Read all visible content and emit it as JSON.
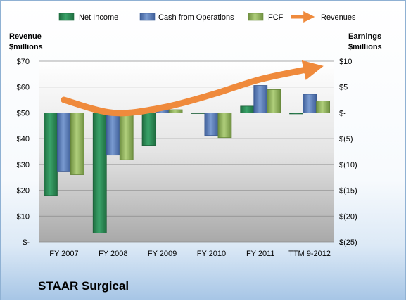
{
  "company": "STAAR Surgical",
  "chart_data": {
    "type": "bar",
    "categories": [
      "FY 2007",
      "FY 2008",
      "FY 2009",
      "FY 2010",
      "FY 2011",
      "TTM 9-2012"
    ],
    "left_axis": {
      "title_line1": "Revenue",
      "title_line2": "$millions",
      "ylim": [
        0,
        70
      ],
      "ticks": [
        "$-",
        "$10",
        "$20",
        "$30",
        "$40",
        "$50",
        "$60",
        "$70"
      ]
    },
    "right_axis": {
      "title_line1": "Earnings",
      "title_line2": "$millions",
      "ylim": [
        -25,
        10
      ],
      "ticks": [
        "$(25)",
        "$(20)",
        "$(15)",
        "$(10)",
        "$(5)",
        "$-",
        "$5",
        "$10"
      ]
    },
    "series": [
      {
        "name": "Net Income",
        "axis": "right",
        "color": "#2e8b57",
        "values": [
          -16.0,
          -23.3,
          -6.3,
          -0.1,
          1.3,
          -0.2
        ]
      },
      {
        "name": "Cash from Operations",
        "axis": "right",
        "color": "#5b7fbc",
        "values": [
          -11.3,
          -8.2,
          1.3,
          -4.4,
          5.3,
          3.6
        ]
      },
      {
        "name": "FCF",
        "axis": "right",
        "color": "#8fb25a",
        "values": [
          -12.0,
          -9.1,
          0.6,
          -4.8,
          4.5,
          2.3
        ]
      },
      {
        "name": "Revenues",
        "axis": "left",
        "type": "line",
        "color": "#ef8a3c",
        "values": [
          55,
          50,
          52,
          57,
          63,
          67
        ]
      }
    ],
    "legend_position": "top"
  }
}
